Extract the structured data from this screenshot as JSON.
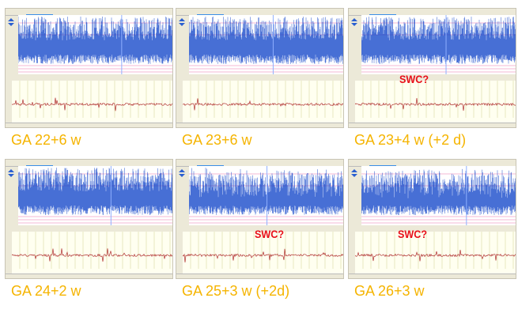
{
  "colors": {
    "label": "#f5b400",
    "swc": "#e8101a",
    "eeg": "#0a3fc8",
    "trace": "#b03030",
    "grid": "#f0f0b0"
  },
  "panels": [
    {
      "label": "GA 22+6 w",
      "swc": null
    },
    {
      "label": "GA 23+6 w",
      "swc": null
    },
    {
      "label": "GA 23+4 w (+2 d)",
      "swc": "SWC?"
    },
    {
      "label": "GA 24+2 w",
      "swc": null
    },
    {
      "label": "GA 25+3 w (+2d)",
      "swc": "SWC?"
    },
    {
      "label": "GA 26+3 w",
      "swc": "SWC?"
    }
  ]
}
